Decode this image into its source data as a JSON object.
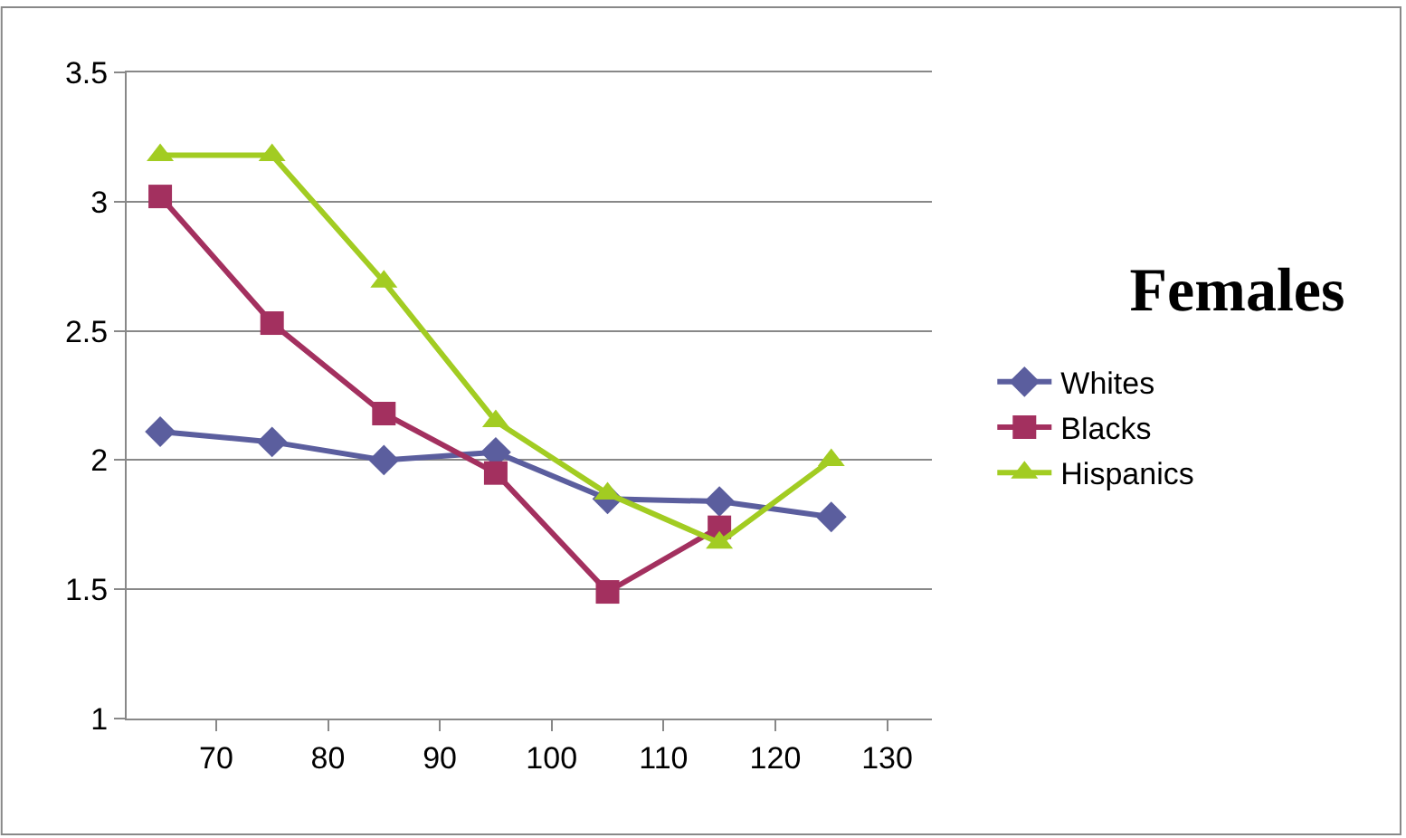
{
  "chart_data": {
    "type": "line",
    "title": "Females",
    "x": [
      65,
      75,
      85,
      95,
      105,
      115,
      125
    ],
    "xlim": [
      62,
      134
    ],
    "xticks": [
      70,
      80,
      90,
      100,
      110,
      120,
      130
    ],
    "ylim": [
      1,
      3.5
    ],
    "yticks": [
      1,
      1.5,
      2,
      2.5,
      3,
      3.5
    ],
    "grid": "y",
    "legend": "right",
    "line_style": "solid",
    "series": [
      {
        "name": "Whites",
        "color": "#5b5e9e",
        "marker": "diamond",
        "values": [
          2.11,
          2.07,
          2.0,
          2.03,
          1.85,
          1.84,
          1.78
        ]
      },
      {
        "name": "Blacks",
        "color": "#a3305f",
        "marker": "square",
        "values": [
          3.02,
          2.53,
          2.18,
          1.95,
          1.49,
          1.74,
          null
        ]
      },
      {
        "name": "Hispanics",
        "color": "#a2cc22",
        "marker": "triangle",
        "values": [
          3.18,
          3.18,
          2.69,
          2.15,
          1.87,
          1.68,
          2.0
        ]
      }
    ]
  }
}
